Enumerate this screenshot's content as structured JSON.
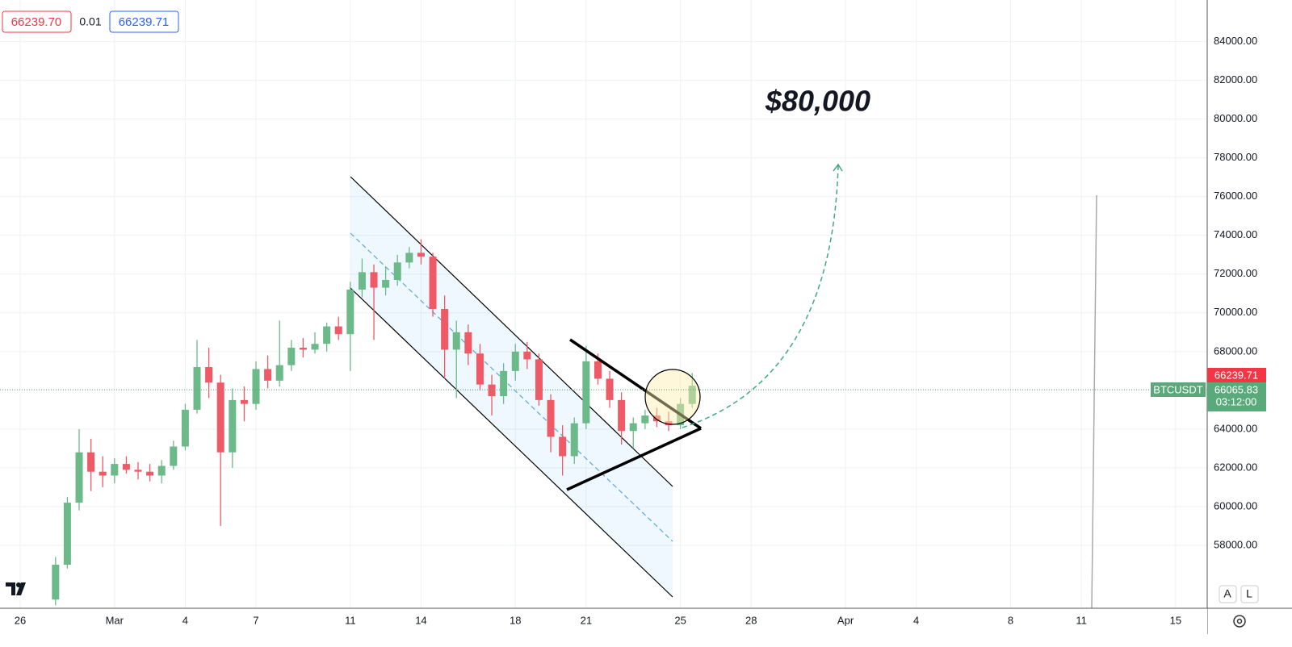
{
  "chart_data": {
    "type": "candlestick",
    "x": [
      1.5,
      2,
      2.5,
      3,
      3.5,
      4,
      4.5,
      5,
      5.5,
      6,
      6.5,
      7,
      7.5,
      8,
      8.5,
      9,
      9.5,
      10,
      10.5,
      11,
      11.5,
      12,
      12.5,
      13,
      13.5,
      14,
      14.5,
      15,
      15.5,
      16,
      16.5,
      17,
      17.5,
      18,
      18.5,
      19,
      19.5,
      20,
      20.5,
      21,
      21.5,
      22,
      22.5,
      23,
      23.5,
      24,
      24.5,
      25,
      25.5,
      26,
      26.5,
      27,
      27.5,
      28,
      28.5
    ],
    "open": [
      55200,
      57000,
      60200,
      62800,
      61800,
      61600,
      62200,
      61900,
      61800,
      61600,
      62100,
      63100,
      65000,
      67200,
      66400,
      62800,
      65500,
      65300,
      67100,
      66500,
      67300,
      68200,
      68100,
      68400,
      69300,
      68900,
      71200,
      72100,
      71300,
      71700,
      72600,
      73100,
      72900,
      70200,
      68100,
      69000,
      67900,
      66300,
      65700,
      67000,
      68000,
      67600,
      65500,
      63600,
      62600,
      64300,
      67500,
      66600,
      65500,
      63900,
      64300,
      64700,
      64400,
      64200,
      65300
    ],
    "high": [
      57400,
      60500,
      64000,
      63500,
      62600,
      62500,
      62600,
      62300,
      62200,
      62400,
      63400,
      65300,
      68600,
      68200,
      66800,
      66100,
      66200,
      67500,
      67800,
      69600,
      68600,
      68700,
      69000,
      69500,
      69800,
      71600,
      72800,
      72500,
      72400,
      73000,
      73400,
      73800,
      73100,
      70900,
      69600,
      69400,
      68400,
      66800,
      67400,
      68400,
      68500,
      67900,
      65800,
      64200,
      64600,
      68300,
      67900,
      67000,
      65900,
      64600,
      65000,
      65100,
      64900,
      65600,
      66900
    ],
    "low": [
      54900,
      56800,
      59800,
      60800,
      61000,
      61200,
      61700,
      61400,
      61300,
      61200,
      61900,
      62900,
      64800,
      65600,
      59000,
      62000,
      64400,
      65000,
      66100,
      66200,
      67000,
      67700,
      67900,
      68000,
      68600,
      67000,
      70800,
      68600,
      70900,
      71400,
      72300,
      72500,
      69800,
      66600,
      65600,
      67300,
      66000,
      64700,
      65300,
      66500,
      67100,
      65200,
      62800,
      61600,
      62200,
      64000,
      66300,
      65100,
      63200,
      63000,
      64000,
      64100,
      63900,
      64000,
      65100
    ],
    "close": [
      57000,
      60200,
      62800,
      61800,
      61600,
      62200,
      61900,
      61800,
      61600,
      62100,
      63100,
      65000,
      67200,
      66400,
      62800,
      65500,
      65300,
      67100,
      66500,
      67300,
      68200,
      68100,
      68400,
      69300,
      68900,
      71200,
      72100,
      71300,
      71700,
      72600,
      73100,
      72900,
      70200,
      68100,
      69000,
      67900,
      66300,
      65700,
      67000,
      68000,
      67600,
      65500,
      63600,
      62600,
      64300,
      67500,
      66600,
      65500,
      63900,
      64300,
      64700,
      64400,
      64200,
      65300,
      66239.71
    ],
    "up_color": "#6cb98a",
    "down_color": "#ef5a66",
    "xlim": [
      -0.856,
      50.34
    ],
    "xticks": [
      {
        "value": 0,
        "label": "26"
      },
      {
        "value": 4,
        "label": "Mar"
      },
      {
        "value": 7,
        "label": "4"
      },
      {
        "value": 10,
        "label": "7"
      },
      {
        "value": 14,
        "label": "11"
      },
      {
        "value": 17,
        "label": "14"
      },
      {
        "value": 21,
        "label": "18"
      },
      {
        "value": 24,
        "label": "21"
      },
      {
        "value": 28,
        "label": "25"
      },
      {
        "value": 31,
        "label": "28"
      },
      {
        "value": 35,
        "label": "Apr"
      },
      {
        "value": 38,
        "label": "4"
      },
      {
        "value": 42,
        "label": "8"
      },
      {
        "value": 45,
        "label": "11"
      },
      {
        "value": 49,
        "label": "15"
      }
    ],
    "ylim": [
      54750,
      86150
    ],
    "yticks": [
      {
        "value": 58000,
        "label": "58000.00"
      },
      {
        "value": 60000,
        "label": "60000.00"
      },
      {
        "value": 62000,
        "label": "62000.00"
      },
      {
        "value": 64000,
        "label": "64000.00"
      },
      {
        "value": 66000,
        "label": "66000.00"
      },
      {
        "value": 68000,
        "label": "68000.00"
      },
      {
        "value": 70000,
        "label": "70000.00"
      },
      {
        "value": 72000,
        "label": "72000.00"
      },
      {
        "value": 74000,
        "label": "74000.00"
      },
      {
        "value": 76000,
        "label": "76000.00"
      },
      {
        "value": 78000,
        "label": "78000.00"
      },
      {
        "value": 80000,
        "label": "80000.00"
      },
      {
        "value": 82000,
        "label": "82000.00"
      },
      {
        "value": 84000,
        "label": "84000.00"
      }
    ],
    "grid": true,
    "annotation": "$80,000",
    "symbol": "BTCUSDT",
    "last_price_label": "66239.71",
    "mark_price_label": "66065.83",
    "countdown": "03:12:00",
    "bid": "66239.70",
    "spread": "0.01",
    "ask": "66239.71",
    "buttons": [
      "A",
      "L"
    ]
  }
}
